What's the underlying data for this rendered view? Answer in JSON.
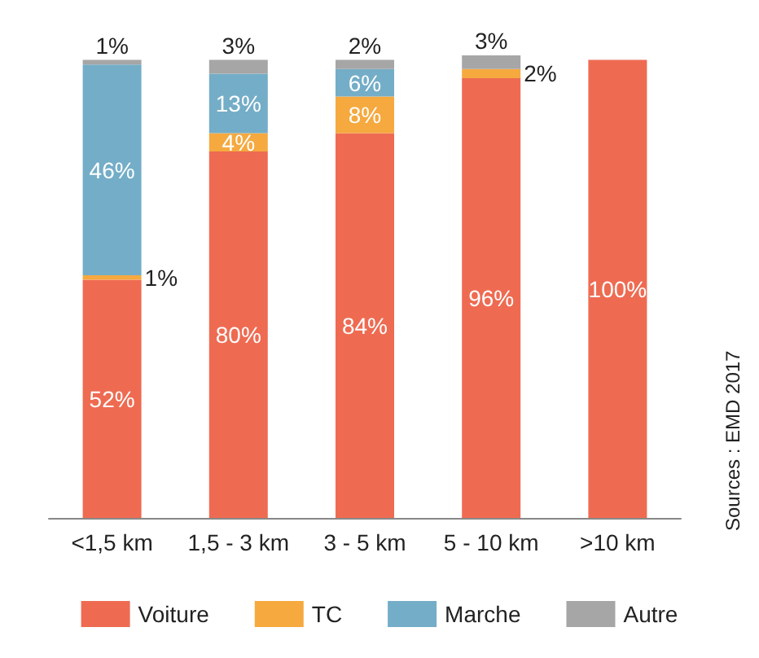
{
  "chart_data": {
    "type": "bar",
    "stacked": true,
    "categories": [
      "<1,5 km",
      "1,5 - 3 km",
      "3 - 5 km",
      "5 - 10 km",
      ">10 km"
    ],
    "series": [
      {
        "name": "Voiture",
        "color": "#ee6b52",
        "values": [
          52,
          80,
          84,
          96,
          100
        ],
        "value_labels": [
          "52%",
          "80%",
          "84%",
          "96%",
          "100%"
        ]
      },
      {
        "name": "TC",
        "color": "#f5a93f",
        "values": [
          1,
          4,
          8,
          2,
          null
        ],
        "value_labels": [
          "1%",
          "4%",
          "8%",
          "2%",
          null
        ]
      },
      {
        "name": "Marche",
        "color": "#74adc7",
        "values": [
          46,
          13,
          6,
          null,
          null
        ],
        "value_labels": [
          "46%",
          "13%",
          "6%",
          null,
          null
        ]
      },
      {
        "name": "Autre",
        "color": "#a6a6a6",
        "values": [
          1,
          3,
          2,
          3,
          null
        ],
        "value_labels": [
          "1%",
          "3%",
          "2%",
          "3%",
          null
        ]
      }
    ],
    "ylim": [
      0,
      101
    ],
    "tick_labels": "x",
    "legend": "bottom",
    "annotations": [
      "Sources : EMD 2017"
    ]
  }
}
